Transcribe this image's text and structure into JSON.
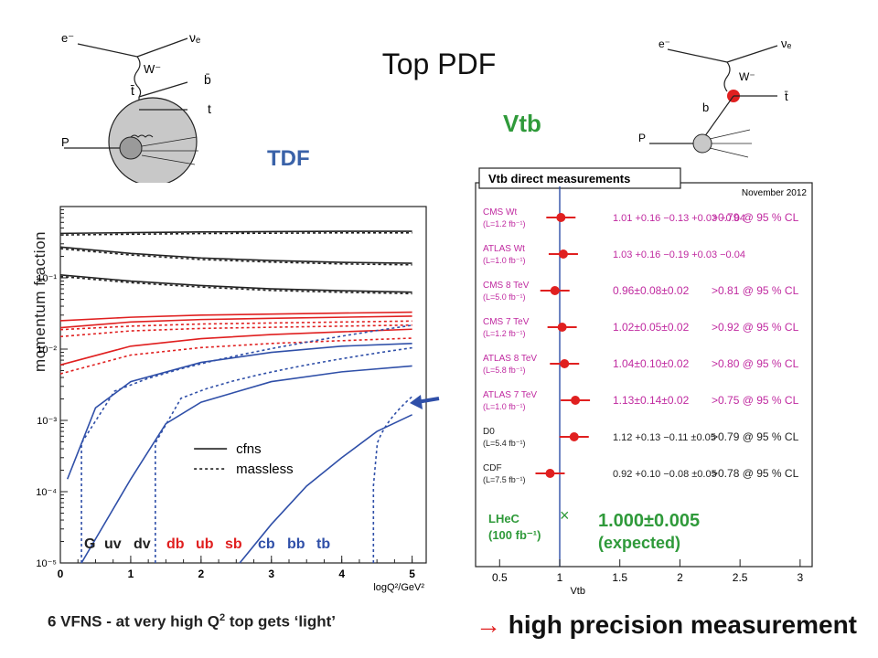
{
  "slide": {
    "title": "Top PDF",
    "tdf_label": "TDF",
    "vtb_label": "Vtb",
    "ylabel": "momentum fraction",
    "caption_pre": "6 VFNS - at very high Q",
    "caption_sup": "2",
    "caption_post": " top gets ‘light’",
    "conclusion_arrow": "→",
    "conclusion_text": "high precision measurement",
    "colors": {
      "tdf": "#3a62a8",
      "vtb": "#2f9a3a",
      "arrow": "#e02020",
      "magenta": "#c02aa0",
      "red": "#e02020",
      "green": "#2f9a3a",
      "blue": "#2f4fa8"
    }
  },
  "diagram_left": {
    "labels": {
      "e": "e⁻",
      "nu": "νₑ",
      "w": "W⁻",
      "tbar": "t̄",
      "bbar": "b̄",
      "t": "t",
      "p": "P"
    }
  },
  "diagram_right": {
    "labels": {
      "e": "e⁻",
      "nu": "νₑ",
      "w": "W⁻",
      "tbar": "t̄",
      "b": "b",
      "p": "P"
    }
  },
  "chart_data": [
    {
      "type": "line",
      "xlabel": "logQ²/GeV²",
      "ylabel": "momentum fraction",
      "xlim": [
        0,
        5.2
      ],
      "ylim_log10": [
        -5,
        0
      ],
      "yscale": "log",
      "x_ticks": [
        "0",
        "1",
        "2",
        "3",
        "4",
        "5"
      ],
      "y_ticks": [
        "10⁻⁵",
        "10⁻⁴",
        "10⁻³",
        "10⁻²",
        "10⁻¹"
      ],
      "legend": {
        "cfns": "cfns",
        "massless": "massless"
      },
      "partons_black": [
        "G",
        "uv",
        "dv"
      ],
      "partons_red": [
        "db",
        "ub",
        "sb"
      ],
      "partons_blue": [
        "cb",
        "bb",
        "tb"
      ],
      "series": [
        {
          "name": "G",
          "color": "#222222",
          "x": [
            0,
            1,
            2,
            3,
            4,
            5
          ],
          "y": [
            0.42,
            0.43,
            0.44,
            0.445,
            0.45,
            0.45
          ]
        },
        {
          "name": "uv",
          "color": "#222222",
          "x": [
            0,
            1,
            2,
            3,
            4,
            5
          ],
          "y": [
            0.27,
            0.22,
            0.19,
            0.175,
            0.165,
            0.16
          ]
        },
        {
          "name": "dv",
          "color": "#222222",
          "x": [
            0,
            1,
            2,
            3,
            4,
            5
          ],
          "y": [
            0.11,
            0.09,
            0.078,
            0.07,
            0.066,
            0.063
          ]
        },
        {
          "name": "db",
          "color": "#e02020",
          "x": [
            0,
            1,
            2,
            3,
            4,
            5
          ],
          "y": [
            0.025,
            0.028,
            0.03,
            0.031,
            0.032,
            0.033
          ]
        },
        {
          "name": "ub",
          "color": "#e02020",
          "x": [
            0,
            1,
            2,
            3,
            4,
            5
          ],
          "y": [
            0.02,
            0.024,
            0.026,
            0.027,
            0.028,
            0.029
          ]
        },
        {
          "name": "sb",
          "color": "#e02020",
          "x": [
            0,
            1,
            2,
            3,
            4,
            5
          ],
          "y": [
            0.006,
            0.011,
            0.014,
            0.016,
            0.0175,
            0.019
          ]
        },
        {
          "name": "cb",
          "color": "#2f4fa8",
          "x": [
            0.1,
            0.5,
            1,
            2,
            3,
            4,
            5
          ],
          "y": [
            0.00015,
            0.0015,
            0.0035,
            0.0065,
            0.009,
            0.011,
            0.012
          ]
        },
        {
          "name": "bb",
          "color": "#2f4fa8",
          "x": [
            0.3,
            1,
            1.5,
            2,
            3,
            4,
            5
          ],
          "y": [
            1e-05,
            0.00015,
            0.0009,
            0.0018,
            0.0035,
            0.0048,
            0.0058
          ]
        },
        {
          "name": "tb",
          "color": "#2f4fa8",
          "x": [
            2.55,
            3,
            3.5,
            4,
            4.5,
            5
          ],
          "y": [
            1e-05,
            3.5e-05,
            0.00012,
            0.0003,
            0.0007,
            0.0012
          ]
        }
      ]
    },
    {
      "type": "scatter",
      "title": "Vtb direct measurements",
      "date": "November 2012",
      "xlabel": "Vtb",
      "xlim": [
        0.3,
        3.1
      ],
      "x_ticks": [
        "0.5",
        "1",
        "1.5",
        "2",
        "2.5",
        "3"
      ],
      "measurements": [
        {
          "name": "CMS Wt",
          "sub": "(L=1.2 fb⁻¹)",
          "value": 1.01,
          "result": "1.01",
          "errs": "+0.16 −0.13 +0.03 −0.04",
          "limit": ">0.79 @ 95 % CL",
          "color": "#c02aa0"
        },
        {
          "name": "ATLAS Wt",
          "sub": "(L=1.0 fb⁻¹)",
          "value": 1.03,
          "result": "1.03",
          "errs": "+0.16 −0.19 +0.03 −0.04",
          "limit": "",
          "color": "#c02aa0"
        },
        {
          "name": "CMS 8 TeV",
          "sub": "(L=5.0 fb⁻¹)",
          "value": 0.96,
          "result": "0.96±0.08±0.02",
          "errs": "",
          "limit": ">0.81 @ 95 % CL",
          "color": "#c02aa0"
        },
        {
          "name": "CMS 7 TeV",
          "sub": "(L=1.2 fb⁻¹)",
          "value": 1.02,
          "result": "1.02±0.05±0.02",
          "errs": "",
          "limit": ">0.92 @ 95 % CL",
          "color": "#c02aa0"
        },
        {
          "name": "ATLAS 8 TeV",
          "sub": "(L=5.8 fb⁻¹)",
          "value": 1.04,
          "result": "1.04±0.10±0.02",
          "errs": "",
          "limit": ">0.80 @ 95 % CL",
          "color": "#c02aa0"
        },
        {
          "name": "ATLAS 7 TeV",
          "sub": "(L=1.0 fb⁻¹)",
          "value": 1.13,
          "result": "1.13±0.14±0.02",
          "errs": "",
          "limit": ">0.75 @ 95 % CL",
          "color": "#c02aa0"
        },
        {
          "name": "D0",
          "sub": "(L=5.4 fb⁻¹)",
          "value": 1.12,
          "result": "1.12",
          "errs": "+0.13 −0.11 ±0.05",
          "limit": ">0.79 @ 95 % CL",
          "color": "#222222"
        },
        {
          "name": "CDF",
          "sub": "(L=7.5 fb⁻¹)",
          "value": 0.92,
          "result": "0.92",
          "errs": "+0.10 −0.08 ±0.05",
          "limit": ">0.78 @ 95 % CL",
          "color": "#222222"
        }
      ],
      "expected": {
        "name": "LHeC",
        "sub": "(100 fb⁻¹)",
        "value": 1.0,
        "result": "1.000±0.005",
        "note": "(expected)",
        "marker": "×",
        "color": "#2f9a3a"
      }
    }
  ]
}
